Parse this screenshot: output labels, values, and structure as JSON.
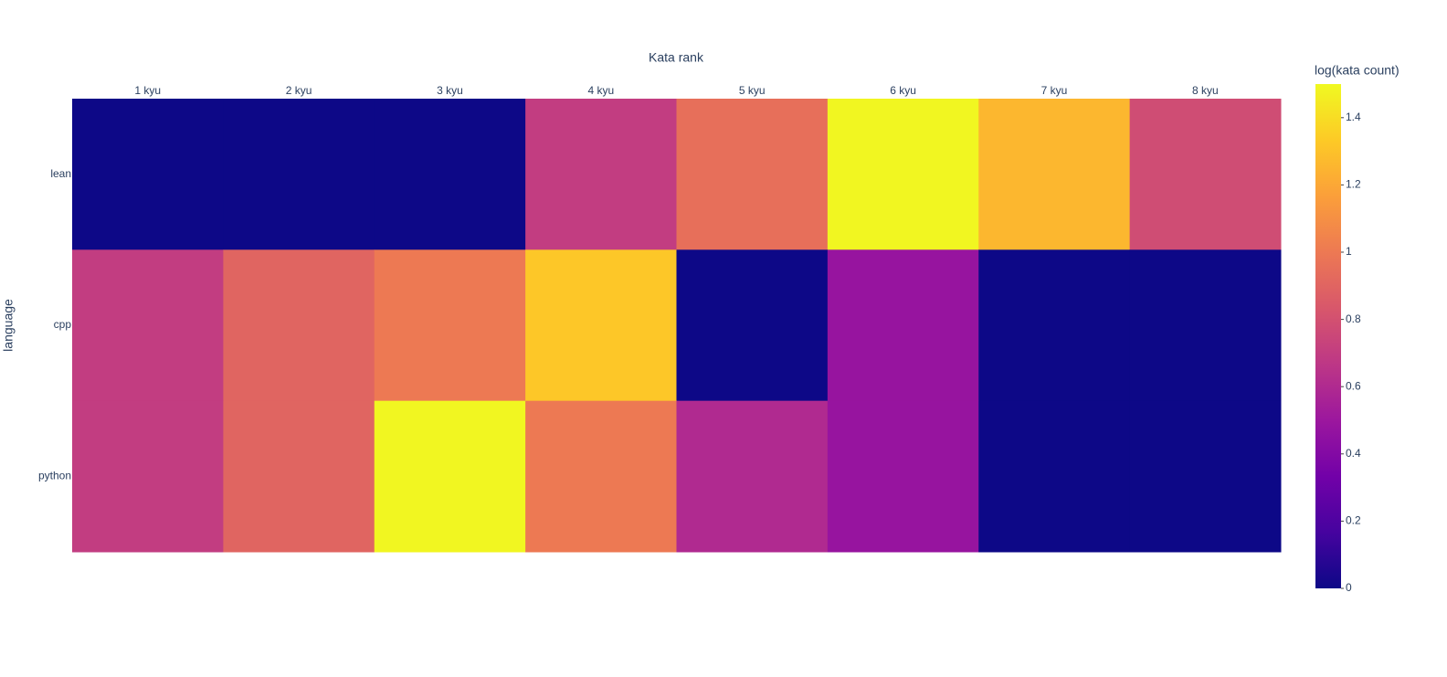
{
  "chart_data": {
    "type": "heatmap",
    "x_label": "Kata rank",
    "y_label": "language",
    "categories": [
      "1 kyu",
      "2 kyu",
      "3 kyu",
      "4 kyu",
      "5 kyu",
      "6 kyu",
      "7 kyu",
      "8 kyu"
    ],
    "rows": [
      "lean",
      "cpp",
      "python"
    ],
    "z": [
      [
        0,
        0,
        0,
        0.7,
        0.95,
        1.49,
        1.26,
        0.78
      ],
      [
        0.7,
        0.9,
        1.0,
        1.32,
        0,
        0.48,
        0,
        0
      ],
      [
        0.7,
        0.9,
        1.49,
        1.0,
        0.6,
        0.48,
        0,
        0
      ]
    ],
    "colorbar_title": "log(kata count)",
    "zlim": [
      0,
      1.5
    ],
    "zticks": [
      0,
      0.2,
      0.4,
      0.6,
      0.8,
      1,
      1.2,
      1.4
    ],
    "colorscale": [
      "#0d0887",
      "#46039f",
      "#7201a8",
      "#9c179e",
      "#bd3786",
      "#d8576b",
      "#ed7953",
      "#fb9f3a",
      "#fdca26",
      "#f0f921"
    ]
  }
}
